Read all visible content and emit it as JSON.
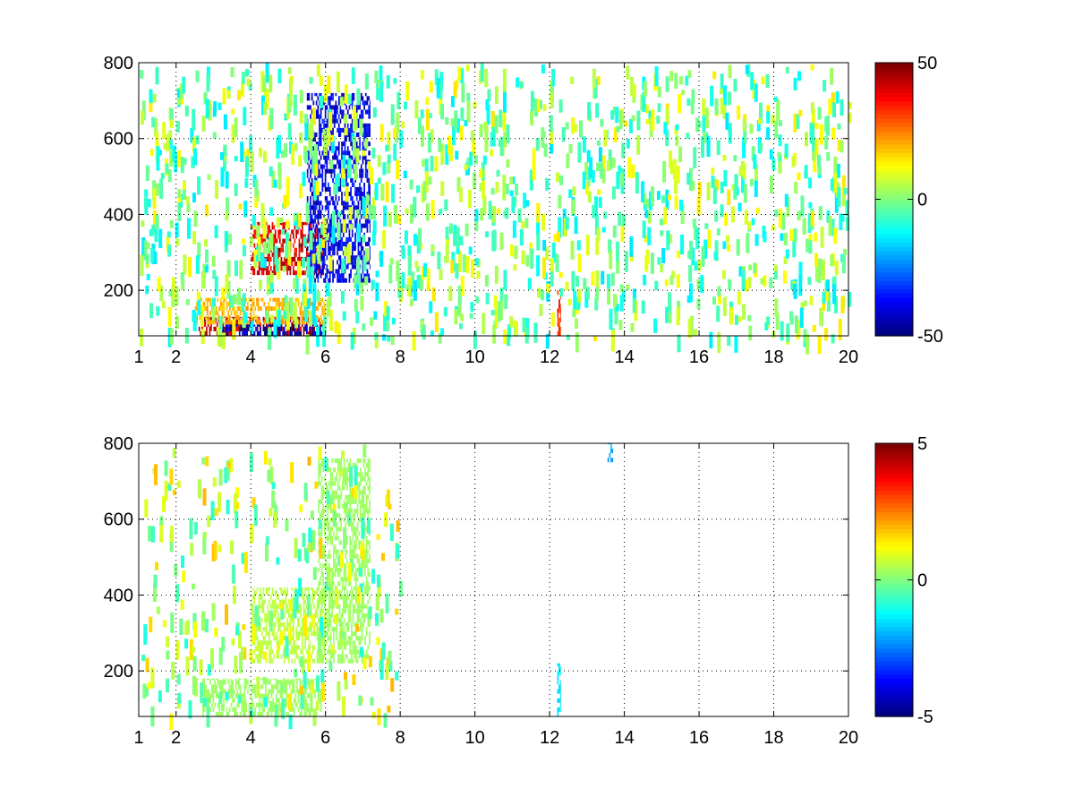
{
  "chart_data": [
    {
      "type": "heatmap",
      "title": "",
      "xlabel": "",
      "ylabel": "",
      "xlim": [
        1,
        20
      ],
      "ylim": [
        80,
        800
      ],
      "x_ticks": [
        "1",
        "2",
        "4",
        "6",
        "8",
        "10",
        "12",
        "14",
        "16",
        "18",
        "20"
      ],
      "x_tick_values": [
        1,
        2,
        4,
        6,
        8,
        10,
        12,
        14,
        16,
        18,
        20
      ],
      "y_ticks": [
        "200",
        "400",
        "600",
        "800"
      ],
      "y_tick_values": [
        200,
        400,
        600,
        800
      ],
      "grid": true,
      "colormap": "jet",
      "colorbar": {
        "min": -50,
        "max": 50,
        "ticks": [
          "50",
          "0",
          "-50"
        ],
        "tick_values": [
          50,
          0,
          -50
        ]
      },
      "features": [
        {
          "name": "low band positive",
          "x": [
            2.6,
            5.9
          ],
          "y": [
            80,
            130
          ],
          "value": 45
        },
        {
          "name": "low band negative",
          "x": [
            3.2,
            6.0
          ],
          "y": [
            80,
            110
          ],
          "value": -45
        },
        {
          "name": "low band mid",
          "x": [
            2.5,
            6.0
          ],
          "y": [
            110,
            180
          ],
          "value": 20
        },
        {
          "name": "positive arc",
          "x": [
            4.0,
            6.0
          ],
          "y": [
            240,
            380
          ],
          "value": 40
        },
        {
          "name": "negative arc",
          "x": [
            5.5,
            7.2
          ],
          "y": [
            220,
            720
          ],
          "value": -40
        },
        {
          "name": "column at 12.2",
          "x": [
            12.2,
            12.3
          ],
          "y": [
            80,
            200
          ],
          "value": 35
        }
      ],
      "noise_x_range": [
        1,
        20
      ],
      "noise_value_range": [
        -15,
        15
      ]
    },
    {
      "type": "heatmap",
      "title": "",
      "xlabel": "",
      "ylabel": "",
      "xlim": [
        1,
        20
      ],
      "ylim": [
        80,
        800
      ],
      "x_ticks": [
        "1",
        "2",
        "4",
        "6",
        "8",
        "10",
        "12",
        "14",
        "16",
        "18",
        "20"
      ],
      "x_tick_values": [
        1,
        2,
        4,
        6,
        8,
        10,
        12,
        14,
        16,
        18,
        20
      ],
      "y_ticks": [
        "200",
        "400",
        "600",
        "800"
      ],
      "y_tick_values": [
        200,
        400,
        600,
        800
      ],
      "grid": true,
      "colormap": "jet",
      "colorbar": {
        "min": -5,
        "max": 5,
        "ticks": [
          "5",
          "0",
          "-5"
        ],
        "tick_values": [
          5,
          0,
          -5
        ]
      },
      "features": [
        {
          "name": "low band",
          "x": [
            2.7,
            5.9
          ],
          "y": [
            80,
            180
          ],
          "value": 0.3
        },
        {
          "name": "arc mid",
          "x": [
            4.0,
            6.0
          ],
          "y": [
            220,
            420
          ],
          "value": 0.6
        },
        {
          "name": "arc right",
          "x": [
            5.8,
            7.2
          ],
          "y": [
            220,
            760
          ],
          "value": 0.3
        },
        {
          "name": "column at 12.2",
          "x": [
            12.2,
            12.3
          ],
          "y": [
            80,
            220
          ],
          "value": -1.5
        },
        {
          "name": "speck at 13.6",
          "x": [
            13.55,
            13.7
          ],
          "y": [
            750,
            800
          ],
          "value": -2.0
        }
      ],
      "noise_x_range": [
        1,
        8
      ],
      "noise_value_range": [
        -1,
        2
      ]
    }
  ]
}
